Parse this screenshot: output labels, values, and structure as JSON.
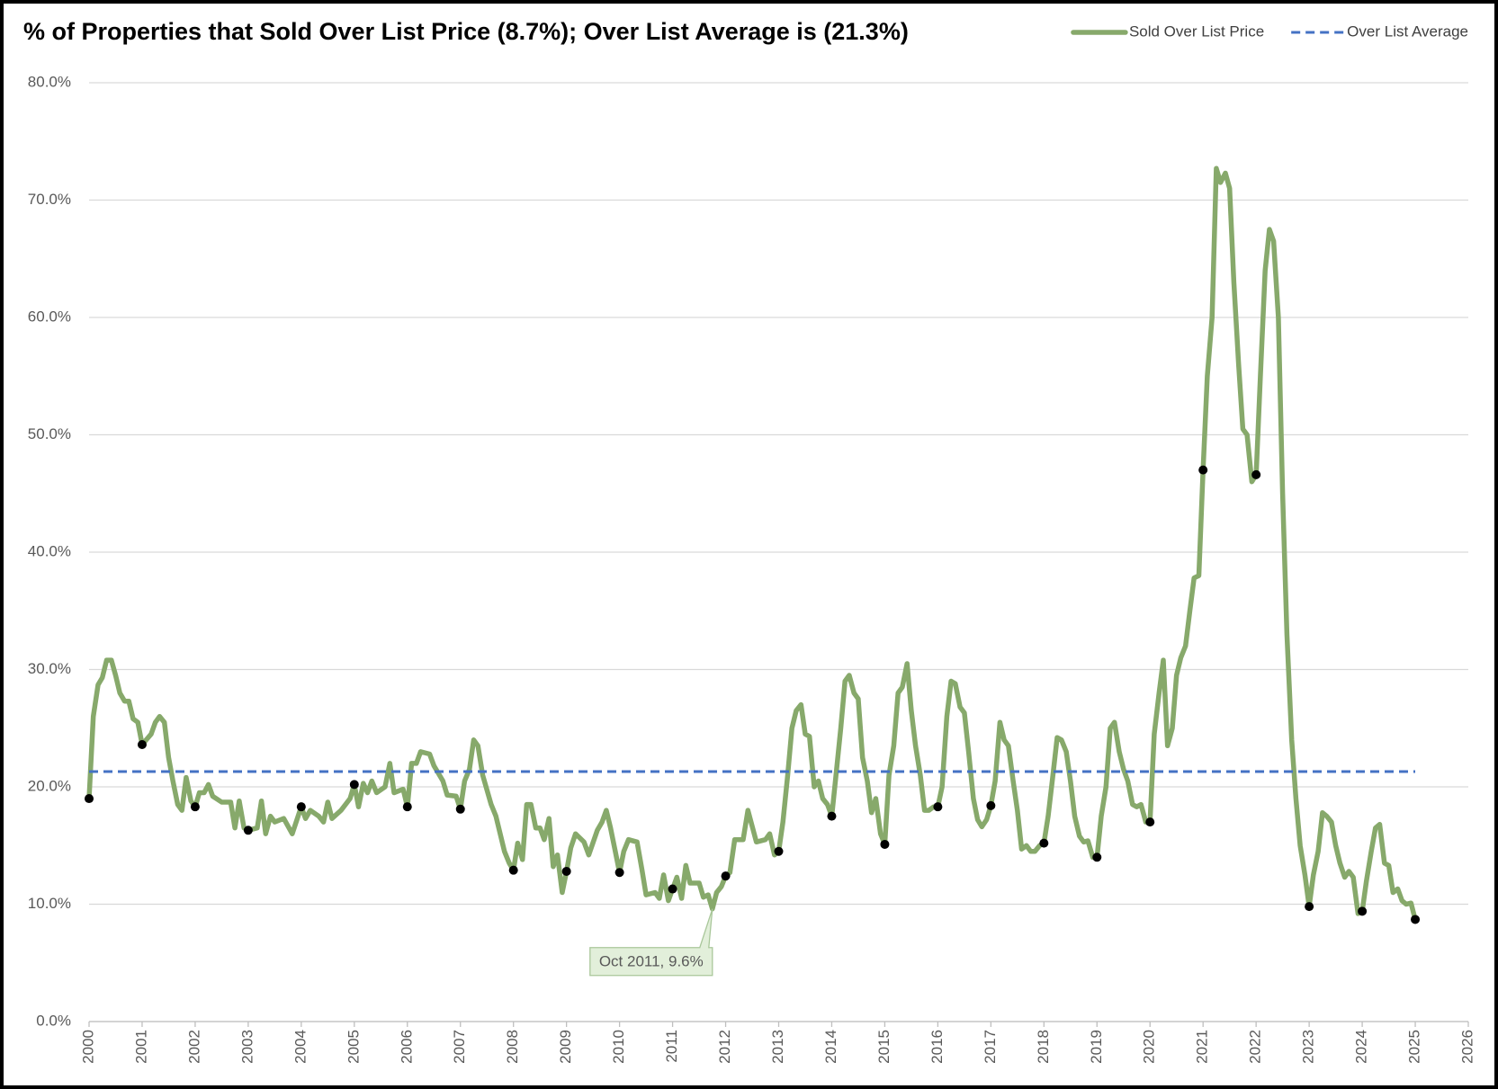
{
  "chart_data": {
    "type": "line",
    "title": "% of Properties that Sold Over List Price (8.7%); Over List Average is (21.3%)",
    "legend": "top-right",
    "grid": true,
    "xlim": [
      2000,
      2026
    ],
    "xticks": [
      2000,
      2001,
      2002,
      2003,
      2004,
      2005,
      2006,
      2007,
      2008,
      2009,
      2010,
      2011,
      2012,
      2013,
      2014,
      2015,
      2016,
      2017,
      2018,
      2019,
      2020,
      2021,
      2022,
      2023,
      2024,
      2025,
      2026
    ],
    "ylim": [
      0,
      80
    ],
    "yticks": [
      {
        "value": 0,
        "label": "0.0%"
      },
      {
        "value": 10,
        "label": "10.0%"
      },
      {
        "value": 20,
        "label": "20.0%"
      },
      {
        "value": 30,
        "label": "30.0%"
      },
      {
        "value": 40,
        "label": "40.0%"
      },
      {
        "value": 50,
        "label": "50.0%"
      },
      {
        "value": 60,
        "label": "60.0%"
      },
      {
        "value": 70,
        "label": "70.0%"
      },
      {
        "value": 80,
        "label": "80.0%"
      }
    ],
    "series": [
      {
        "name": "Sold Over List Price",
        "color": "#87a96b",
        "style": "solid",
        "x": [
          2000,
          2000.08,
          2000.17,
          2000.25,
          2000.33,
          2000.42,
          2000.5,
          2000.58,
          2000.67,
          2000.75,
          2000.83,
          2000.92,
          2001,
          2001.17,
          2001.25,
          2001.33,
          2001.42,
          2001.5,
          2001.58,
          2001.67,
          2001.75,
          2001.83,
          2001.92,
          2002,
          2002.08,
          2002.17,
          2002.25,
          2002.33,
          2002.5,
          2002.67,
          2002.75,
          2002.83,
          2002.92,
          2003,
          2003.17,
          2003.25,
          2003.33,
          2003.42,
          2003.5,
          2003.67,
          2003.83,
          2004,
          2004.08,
          2004.17,
          2004.33,
          2004.42,
          2004.5,
          2004.58,
          2004.75,
          2004.92,
          2005,
          2005.08,
          2005.17,
          2005.25,
          2005.33,
          2005.42,
          2005.58,
          2005.67,
          2005.75,
          2005.92,
          2006,
          2006.08,
          2006.17,
          2006.25,
          2006.42,
          2006.5,
          2006.67,
          2006.75,
          2006.92,
          2007,
          2007.08,
          2007.17,
          2007.25,
          2007.33,
          2007.42,
          2007.58,
          2007.67,
          2007.83,
          2007.92,
          2008,
          2008.08,
          2008.17,
          2008.25,
          2008.33,
          2008.42,
          2008.5,
          2008.58,
          2008.67,
          2008.75,
          2008.83,
          2008.92,
          2009,
          2009.08,
          2009.17,
          2009.33,
          2009.42,
          2009.58,
          2009.67,
          2009.75,
          2009.83,
          2009.92,
          2010,
          2010.08,
          2010.17,
          2010.33,
          2010.42,
          2010.5,
          2010.67,
          2010.75,
          2010.83,
          2010.92,
          2011,
          2011.08,
          2011.17,
          2011.25,
          2011.33,
          2011.5,
          2011.58,
          2011.67,
          2011.75,
          2011.83,
          2011.92,
          2012,
          2012.08,
          2012.17,
          2012.25,
          2012.33,
          2012.42,
          2012.58,
          2012.75,
          2012.83,
          2012.92,
          2013,
          2013.08,
          2013.17,
          2013.25,
          2013.33,
          2013.42,
          2013.5,
          2013.58,
          2013.67,
          2013.75,
          2013.83,
          2013.92,
          2014,
          2014.08,
          2014.17,
          2014.25,
          2014.33,
          2014.42,
          2014.5,
          2014.58,
          2014.67,
          2014.75,
          2014.83,
          2014.92,
          2015,
          2015.08,
          2015.17,
          2015.25,
          2015.33,
          2015.42,
          2015.5,
          2015.58,
          2015.67,
          2015.75,
          2015.83,
          2015.92,
          2016,
          2016.08,
          2016.17,
          2016.25,
          2016.33,
          2016.42,
          2016.5,
          2016.58,
          2016.67,
          2016.75,
          2016.83,
          2016.92,
          2017,
          2017.08,
          2017.17,
          2017.25,
          2017.33,
          2017.42,
          2017.5,
          2017.58,
          2017.67,
          2017.75,
          2017.83,
          2017.92,
          2018,
          2018.08,
          2018.17,
          2018.25,
          2018.33,
          2018.42,
          2018.5,
          2018.58,
          2018.67,
          2018.75,
          2018.83,
          2018.92,
          2019,
          2019.08,
          2019.17,
          2019.25,
          2019.33,
          2019.42,
          2019.5,
          2019.58,
          2019.67,
          2019.75,
          2019.83,
          2019.92,
          2020,
          2020.08,
          2020.17,
          2020.25,
          2020.33,
          2020.42,
          2020.5,
          2020.58,
          2020.67,
          2020.75,
          2020.83,
          2020.92,
          2021,
          2021.08,
          2021.17,
          2021.25,
          2021.33,
          2021.42,
          2021.5,
          2021.58,
          2021.67,
          2021.75,
          2021.83,
          2021.92,
          2022,
          2022.08,
          2022.17,
          2022.25,
          2022.33,
          2022.42,
          2022.5,
          2022.58,
          2022.67,
          2022.75,
          2022.83,
          2022.92,
          2023,
          2023.08,
          2023.17,
          2023.25,
          2023.33,
          2023.42,
          2023.5,
          2023.58,
          2023.67,
          2023.75,
          2023.83,
          2023.92,
          2024,
          2024.08,
          2024.17,
          2024.25,
          2024.33,
          2024.42,
          2024.5,
          2024.58,
          2024.67,
          2024.75,
          2024.83,
          2024.92,
          2025
        ],
        "values": [
          19,
          26,
          28.7,
          29.3,
          30.8,
          30.8,
          29.5,
          28,
          27.3,
          27.3,
          25.8,
          25.5,
          23.6,
          24.5,
          25.5,
          26,
          25.5,
          22.5,
          20.5,
          18.5,
          18,
          20.8,
          18.8,
          18.3,
          19.5,
          19.5,
          20.2,
          19.2,
          18.7,
          18.7,
          16.5,
          18.8,
          16.5,
          16.3,
          16.5,
          18.8,
          16,
          17.5,
          17,
          17.3,
          16,
          18.3,
          17.3,
          18,
          17.5,
          17,
          18.7,
          17.3,
          18,
          19,
          20.2,
          18.3,
          20.3,
          19.5,
          20.5,
          19.5,
          20,
          22,
          19.5,
          19.8,
          18.3,
          22,
          22,
          23,
          22.8,
          21.8,
          20.5,
          19.3,
          19.2,
          18.1,
          20.5,
          21.5,
          24,
          23.5,
          21,
          18.5,
          17.5,
          14.5,
          13.5,
          12.9,
          15.2,
          13.8,
          18.5,
          18.5,
          16.5,
          16.5,
          15.5,
          17.3,
          13.2,
          14.2,
          11,
          12.8,
          14.8,
          16,
          15.3,
          14.2,
          16.3,
          17,
          18,
          16.5,
          14.5,
          12.7,
          14.5,
          15.5,
          15.3,
          13,
          10.8,
          11,
          10.5,
          12.5,
          10.3,
          11.3,
          12.3,
          10.5,
          13.3,
          11.8,
          11.8,
          10.6,
          10.8,
          9.6,
          11,
          11.5,
          12.4,
          12.7,
          15.5,
          15.5,
          15.5,
          18,
          15.3,
          15.5,
          16,
          14.2,
          14.5,
          17,
          21,
          25,
          26.5,
          27,
          24.5,
          24.3,
          20,
          20.5,
          19,
          18.5,
          17.5,
          21,
          25,
          29,
          29.5,
          28,
          27.5,
          22.5,
          20.5,
          17.8,
          19,
          16,
          15.1,
          21,
          23.5,
          28,
          28.5,
          30.5,
          26.5,
          23.5,
          21,
          18,
          18,
          18.3,
          18.3,
          20,
          26,
          29,
          28.8,
          26.8,
          26.3,
          23,
          19,
          17.2,
          16.6,
          17.2,
          18.4,
          20.5,
          25.5,
          24,
          23.5,
          20.5,
          18,
          14.7,
          15,
          14.5,
          14.5,
          15,
          15.2,
          17.5,
          21,
          24.2,
          24,
          23,
          20.5,
          17.5,
          15.8,
          15.3,
          15.4,
          14,
          14,
          17.5,
          20,
          25,
          25.5,
          23,
          21.5,
          20.5,
          18.5,
          18.3,
          18.5,
          17,
          17,
          24.5,
          28,
          30.8,
          23.5,
          25,
          29.5,
          31,
          32,
          35,
          37.8,
          38,
          47,
          55,
          60,
          72.7,
          71.5,
          72.3,
          71,
          63,
          56,
          50.5,
          50,
          46,
          46.6,
          55,
          64,
          67.5,
          66.5,
          60,
          45,
          33,
          24,
          19,
          15,
          12.5,
          9.8,
          12.5,
          14.5,
          17.8,
          17.5,
          17,
          15,
          13.5,
          12.3,
          12.8,
          12.3,
          9.2,
          9.4,
          12,
          14.5,
          16.5,
          16.8,
          13.5,
          13.3,
          11,
          11.3,
          10.3,
          10,
          10.1,
          8.7
        ]
      },
      {
        "name": "Over List Average",
        "color": "#4472c4",
        "style": "dashed",
        "x": [
          2000,
          2025
        ],
        "values": [
          21.3,
          21.3
        ]
      }
    ],
    "annotations": [
      {
        "text": "Oct 2011, 9.6%",
        "x": 2011.75,
        "y": 9.6
      }
    ]
  }
}
